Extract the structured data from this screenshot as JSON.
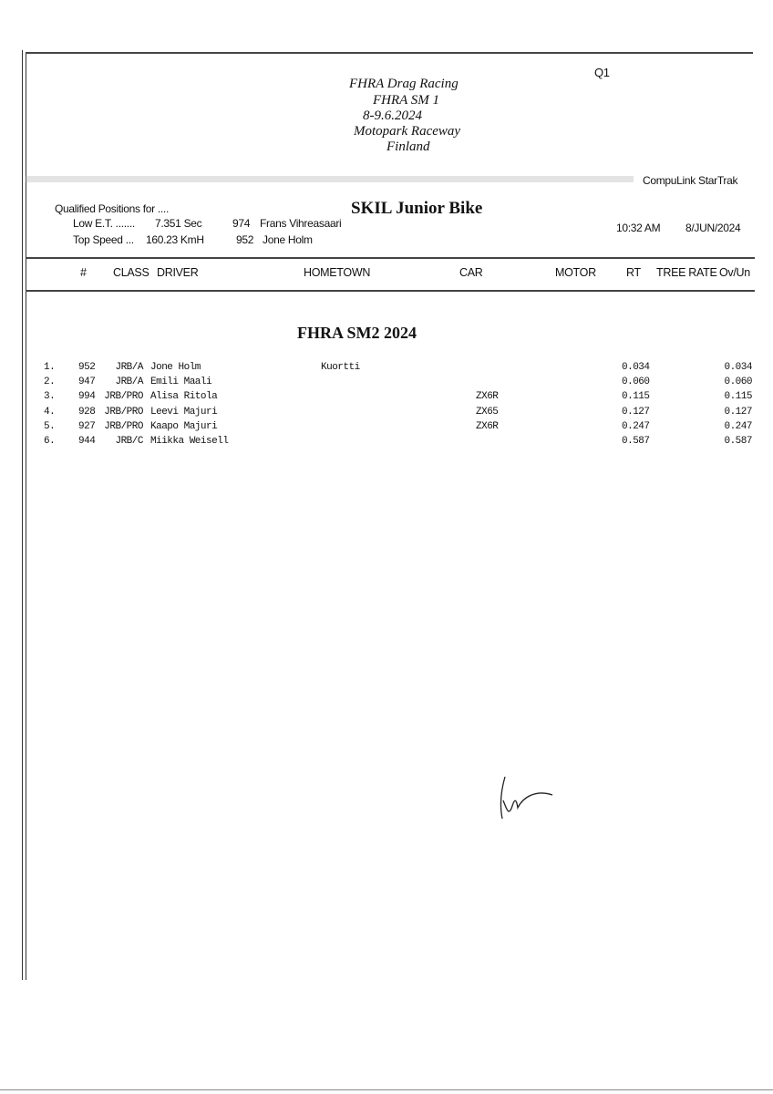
{
  "header": {
    "round": "Q1",
    "title_lines": [
      "FHRA Drag Racing",
      "FHRA SM 1",
      "8-9.6.2024",
      "Motopark Raceway",
      "Finland"
    ],
    "software": "CompuLink  StarTrak"
  },
  "summary": {
    "qualified_label": "Qualified Positions for ....",
    "class_name": "SKIL Junior Bike",
    "low_et_label": "Low E.T. .......",
    "low_et_value": "7.351  Sec",
    "low_et_num": "974",
    "low_et_driver": "Frans Vihreasaari",
    "top_speed_label": "Top Speed ...",
    "top_speed_value": "160.23  KmH",
    "top_speed_num": "952",
    "top_speed_driver": "Jone Holm",
    "time": "10:32 AM",
    "date": "8/JUN/2024"
  },
  "columns": [
    "#",
    "CLASS",
    "DRIVER",
    "HOMETOWN",
    "CAR",
    "MOTOR",
    "RT",
    "TREE RATE",
    "Ov/Un"
  ],
  "section_title": "FHRA SM2 2024",
  "rows": [
    {
      "pos": "1.",
      "num": "952",
      "class": "JRB/A",
      "driver": "Jone Holm",
      "hometown": "Kuortti",
      "car": "",
      "rt": "0.034",
      "ovun": "0.034"
    },
    {
      "pos": "2.",
      "num": "947",
      "class": "JRB/A",
      "driver": "Emili Maali",
      "hometown": "",
      "car": "",
      "rt": "0.060",
      "ovun": "0.060"
    },
    {
      "pos": "3.",
      "num": "994",
      "class": "JRB/PRO",
      "driver": "Alisa Ritola",
      "hometown": "",
      "car": "ZX6R",
      "rt": "0.115",
      "ovun": "0.115"
    },
    {
      "pos": "4.",
      "num": "928",
      "class": "JRB/PRO",
      "driver": "Leevi Majuri",
      "hometown": "",
      "car": "ZX65",
      "rt": "0.127",
      "ovun": "0.127"
    },
    {
      "pos": "5.",
      "num": "927",
      "class": "JRB/PRO",
      "driver": "Kaapo Majuri",
      "hometown": "",
      "car": "ZX6R",
      "rt": "0.247",
      "ovun": "0.247"
    },
    {
      "pos": "6.",
      "num": "944",
      "class": "JRB/C",
      "driver": "Miikka Weisell",
      "hometown": "",
      "car": "",
      "rt": "0.587",
      "ovun": "0.587"
    }
  ]
}
